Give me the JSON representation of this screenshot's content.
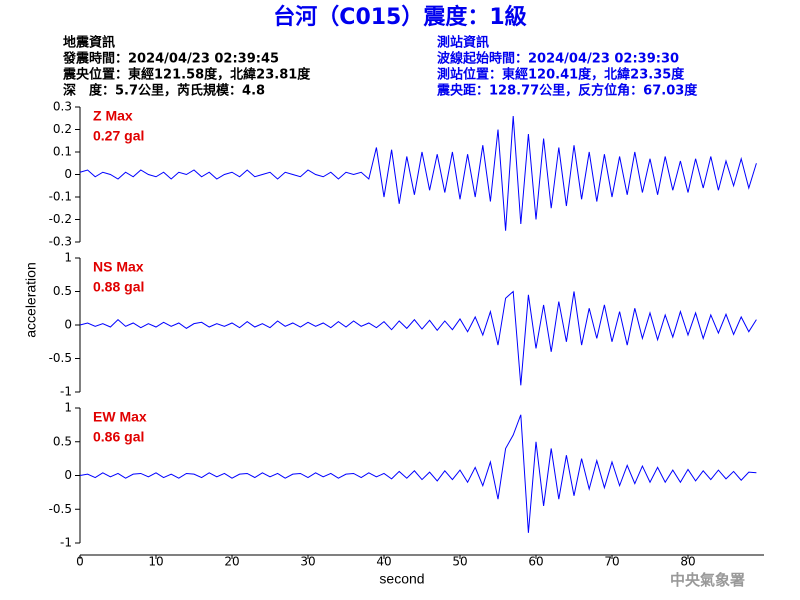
{
  "header": {
    "title": "台河（C015）震度：1級",
    "quake_info": [
      "地震資訊",
      "發震時間：2024/04/23 02:39:45",
      "震央位置：東經121.58度，北緯23.81度",
      "深　度：5.7公里，芮氏規模：4.8"
    ],
    "station_info": [
      "測站資訊",
      "波線起始時間：2024/04/23 02:39:30",
      "測站位置：東經120.41度，北緯23.35度",
      "震央距：128.77公里，反方位角：67.03度"
    ]
  },
  "footer": "中央氣象署",
  "chart_data": [
    {
      "type": "line",
      "annotations": [
        "Z Max",
        "0.27 gal"
      ],
      "color": "#0000ff",
      "ylim": [
        -0.3,
        0.3
      ],
      "yticks": [
        -0.3,
        -0.2,
        -0.1,
        0,
        0.1,
        0.2,
        0.3
      ],
      "xlim": [
        0,
        90
      ],
      "x": [
        0,
        1,
        2,
        3,
        4,
        5,
        6,
        7,
        8,
        9,
        10,
        11,
        12,
        13,
        14,
        15,
        16,
        17,
        18,
        19,
        20,
        21,
        22,
        23,
        24,
        25,
        26,
        27,
        28,
        29,
        30,
        31,
        32,
        33,
        34,
        35,
        36,
        37,
        38,
        39,
        40,
        41,
        42,
        43,
        44,
        45,
        46,
        47,
        48,
        49,
        50,
        51,
        52,
        53,
        54,
        55,
        56,
        57,
        58,
        59,
        60,
        61,
        62,
        63,
        64,
        65,
        66,
        67,
        68,
        69,
        70,
        71,
        72,
        73,
        74,
        75,
        76,
        77,
        78,
        79,
        80,
        81,
        82,
        83,
        84,
        85,
        86,
        87,
        88,
        89
      ],
      "values": [
        0.01,
        0.02,
        -0.01,
        0.01,
        0,
        -0.02,
        0.01,
        -0.01,
        0.02,
        0,
        -0.01,
        0.01,
        -0.02,
        0.01,
        0,
        0.02,
        -0.01,
        0.01,
        -0.02,
        0,
        0.01,
        -0.01,
        0.02,
        -0.01,
        0,
        0.01,
        -0.02,
        0.01,
        0,
        -0.01,
        0.02,
        0,
        -0.01,
        0.01,
        -0.02,
        0.01,
        0,
        0.01,
        -0.02,
        0.12,
        -0.1,
        0.11,
        -0.13,
        0.08,
        -0.09,
        0.1,
        -0.07,
        0.09,
        -0.08,
        0.1,
        -0.11,
        0.09,
        -0.1,
        0.13,
        -0.12,
        0.2,
        -0.25,
        0.26,
        -0.22,
        0.18,
        -0.2,
        0.16,
        -0.15,
        0.12,
        -0.14,
        0.13,
        -0.11,
        0.1,
        -0.12,
        0.09,
        -0.1,
        0.08,
        -0.09,
        0.1,
        -0.08,
        0.07,
        -0.09,
        0.08,
        -0.07,
        0.06,
        -0.08,
        0.07,
        -0.06,
        0.08,
        -0.07,
        0.06,
        -0.05,
        0.07,
        -0.06,
        0.05
      ]
    },
    {
      "type": "line",
      "annotations": [
        "NS Max",
        "0.88 gal"
      ],
      "color": "#0000ff",
      "ylabel": "acceleration",
      "ylim": [
        -1,
        1
      ],
      "yticks": [
        -1,
        -0.5,
        0,
        0.5,
        1
      ],
      "xlim": [
        0,
        90
      ],
      "x": [
        0,
        1,
        2,
        3,
        4,
        5,
        6,
        7,
        8,
        9,
        10,
        11,
        12,
        13,
        14,
        15,
        16,
        17,
        18,
        19,
        20,
        21,
        22,
        23,
        24,
        25,
        26,
        27,
        28,
        29,
        30,
        31,
        32,
        33,
        34,
        35,
        36,
        37,
        38,
        39,
        40,
        41,
        42,
        43,
        44,
        45,
        46,
        47,
        48,
        49,
        50,
        51,
        52,
        53,
        54,
        55,
        56,
        57,
        58,
        59,
        60,
        61,
        62,
        63,
        64,
        65,
        66,
        67,
        68,
        69,
        70,
        71,
        72,
        73,
        74,
        75,
        76,
        77,
        78,
        79,
        80,
        81,
        82,
        83,
        84,
        85,
        86,
        87,
        88,
        89
      ],
      "values": [
        0,
        0.03,
        -0.02,
        0.02,
        -0.03,
        0.08,
        -0.02,
        0.03,
        -0.04,
        0.02,
        -0.03,
        0.04,
        -0.02,
        0.03,
        -0.05,
        0.02,
        0.04,
        -0.03,
        0.02,
        -0.02,
        0.03,
        -0.04,
        0.05,
        -0.03,
        0.02,
        -0.04,
        0.06,
        -0.02,
        0.03,
        -0.03,
        0.04,
        -0.02,
        0.03,
        -0.04,
        0.05,
        -0.03,
        0.06,
        -0.02,
        0.03,
        -0.04,
        0.05,
        -0.07,
        0.06,
        -0.05,
        0.08,
        -0.06,
        0.07,
        -0.08,
        0.06,
        -0.07,
        0.09,
        -0.1,
        0.12,
        -0.15,
        0.2,
        -0.3,
        0.4,
        0.5,
        -0.9,
        0.45,
        -0.35,
        0.3,
        -0.4,
        0.35,
        -0.25,
        0.5,
        -0.3,
        0.25,
        -0.2,
        0.3,
        -0.25,
        0.2,
        -0.3,
        0.25,
        -0.2,
        0.18,
        -0.22,
        0.15,
        -0.18,
        0.2,
        -0.15,
        0.18,
        -0.2,
        0.15,
        -0.12,
        0.16,
        -0.14,
        0.12,
        -0.1,
        0.08
      ]
    },
    {
      "type": "line",
      "annotations": [
        "EW Max",
        "0.86 gal"
      ],
      "color": "#0000ff",
      "xlabel": "second",
      "ylim": [
        -1,
        1
      ],
      "yticks": [
        -1,
        -0.5,
        0,
        0.5,
        1
      ],
      "xlim": [
        0,
        90
      ],
      "xticks": [
        0,
        10,
        20,
        30,
        40,
        50,
        60,
        70,
        80
      ],
      "x": [
        0,
        1,
        2,
        3,
        4,
        5,
        6,
        7,
        8,
        9,
        10,
        11,
        12,
        13,
        14,
        15,
        16,
        17,
        18,
        19,
        20,
        21,
        22,
        23,
        24,
        25,
        26,
        27,
        28,
        29,
        30,
        31,
        32,
        33,
        34,
        35,
        36,
        37,
        38,
        39,
        40,
        41,
        42,
        43,
        44,
        45,
        46,
        47,
        48,
        49,
        50,
        51,
        52,
        53,
        54,
        55,
        56,
        57,
        58,
        59,
        60,
        61,
        62,
        63,
        64,
        65,
        66,
        67,
        68,
        69,
        70,
        71,
        72,
        73,
        74,
        75,
        76,
        77,
        78,
        79,
        80,
        81,
        82,
        83,
        84,
        85,
        86,
        87,
        88,
        89
      ],
      "values": [
        0,
        0.02,
        -0.03,
        0.04,
        -0.02,
        0.03,
        -0.04,
        0.02,
        0.03,
        -0.02,
        0.04,
        -0.03,
        0.02,
        -0.04,
        0.03,
        0.02,
        -0.03,
        0.04,
        -0.02,
        0.03,
        -0.04,
        0.02,
        0.03,
        -0.03,
        0.04,
        -0.02,
        0.03,
        -0.04,
        0.02,
        0.03,
        -0.03,
        0.04,
        -0.02,
        0.03,
        -0.04,
        0.02,
        0.03,
        -0.03,
        0.04,
        -0.02,
        0.03,
        -0.05,
        0.06,
        -0.04,
        0.07,
        -0.06,
        0.05,
        -0.08,
        0.07,
        -0.06,
        0.08,
        -0.1,
        0.12,
        -0.15,
        0.2,
        -0.35,
        0.4,
        0.6,
        0.9,
        -0.85,
        0.5,
        -0.45,
        0.4,
        -0.35,
        0.3,
        -0.3,
        0.25,
        -0.2,
        0.22,
        -0.18,
        0.2,
        -0.15,
        0.15,
        -0.12,
        0.14,
        -0.1,
        0.12,
        -0.1,
        0.08,
        -0.1,
        0.09,
        -0.08,
        0.07,
        -0.06,
        0.08,
        -0.05,
        0.06,
        -0.07,
        0.05,
        0.04
      ]
    }
  ]
}
